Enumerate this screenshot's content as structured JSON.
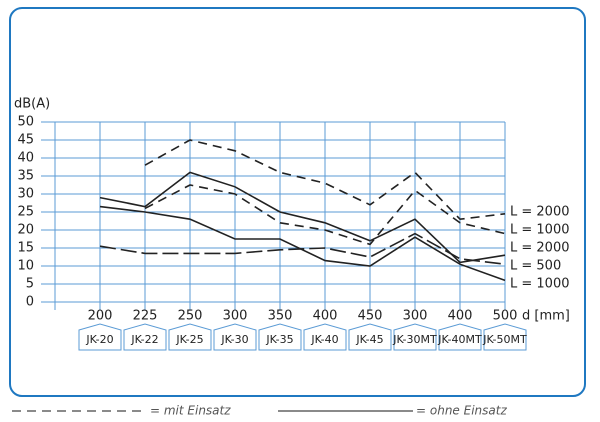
{
  "chart_data": {
    "type": "line",
    "y_label": "dB(A)",
    "x_label": "d [mm]",
    "categories": [
      "200",
      "225",
      "250",
      "300",
      "350",
      "400",
      "450",
      "300",
      "400",
      "500"
    ],
    "subcategories": [
      "JK-20",
      "JK-22",
      "JK-25",
      "JK-30",
      "JK-35",
      "JK-40",
      "JK-45",
      "JK-30MT",
      "JK-40MT",
      "JK-50MT"
    ],
    "ylim": [
      0,
      50
    ],
    "yticks": [
      0,
      5,
      10,
      15,
      20,
      25,
      30,
      35,
      40,
      45,
      50
    ],
    "grid": true,
    "series": [
      {
        "label": "L = 2000",
        "color": "#222222",
        "dash": "9 6",
        "values": [
          null,
          38,
          45,
          42,
          36,
          33,
          27,
          36,
          23,
          24.5
        ]
      },
      {
        "label": "L = 1000",
        "color": "#222222",
        "dash": "9 6",
        "values": [
          null,
          26,
          32.5,
          30,
          22,
          20,
          16,
          31,
          22,
          19
        ]
      },
      {
        "label": "L = 2000",
        "color": "#222222",
        "dash": "",
        "values": [
          29,
          26.5,
          36,
          32,
          25,
          22,
          17,
          23,
          11,
          13
        ]
      },
      {
        "label": "L = 500",
        "color": "#222222",
        "dash": "16 5",
        "values": [
          15.5,
          13.5,
          13.5,
          13.5,
          14.5,
          15,
          12.5,
          19,
          12,
          10.5
        ]
      },
      {
        "label": "L = 1000",
        "color": "#222222",
        "dash": "",
        "values": [
          26.5,
          25,
          23,
          17.5,
          17.5,
          11.5,
          10,
          18,
          10.5,
          6
        ]
      }
    ],
    "legend": [
      {
        "text": "= mit Einsatz",
        "dash": "9 6"
      },
      {
        "text": "= ohne Einsatz",
        "dash": ""
      }
    ]
  }
}
